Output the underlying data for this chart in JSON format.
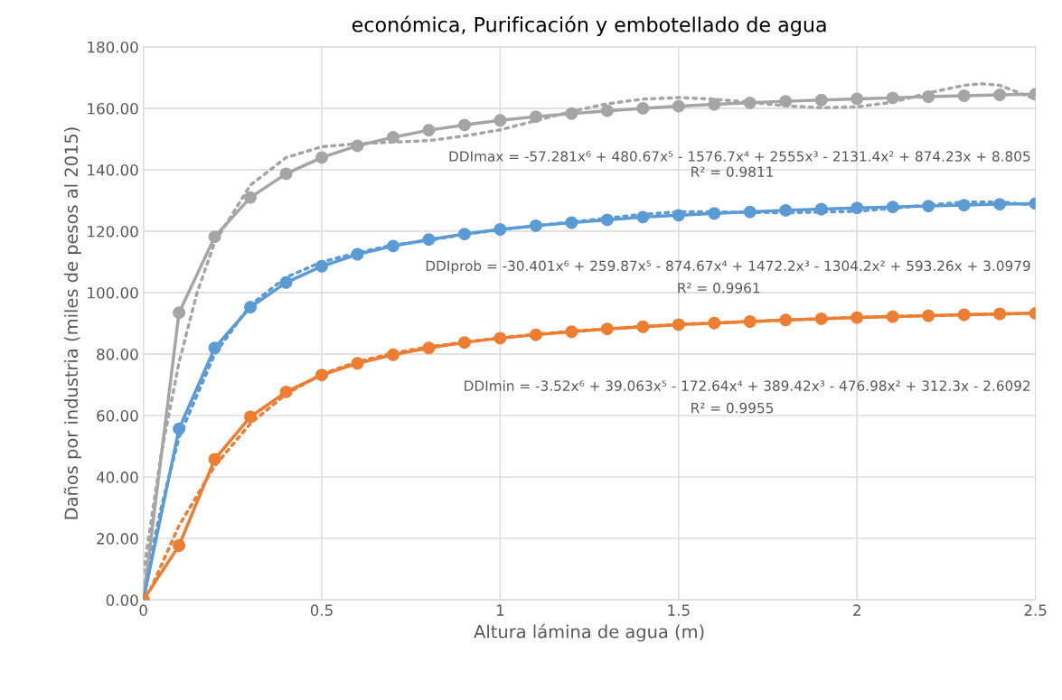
{
  "chart_data": {
    "type": "line",
    "title": "económica, Purificación y embotellado de agua",
    "xlabel": "Altura lámina de agua (m)",
    "ylabel": "Daños por industria (miles de pesos al 2015)",
    "x": [
      0,
      0.1,
      0.2,
      0.3,
      0.4,
      0.5,
      0.6,
      0.7,
      0.8,
      0.9,
      1.0,
      1.1,
      1.2,
      1.3,
      1.4,
      1.5,
      1.6,
      1.7,
      1.8,
      1.9,
      2.0,
      2.1,
      2.2,
      2.3,
      2.4,
      2.5
    ],
    "series": [
      {
        "color": "#a5a5a5",
        "marker": "circle",
        "line_style": "solid",
        "values": [
          0,
          93.5,
          118.2,
          131,
          138.7,
          144,
          147.8,
          150.6,
          152.9,
          154.6,
          156.1,
          157.3,
          158.3,
          159.2,
          160,
          160.7,
          161.3,
          161.8,
          162.3,
          162.7,
          163.1,
          163.4,
          163.8,
          164.1,
          164.4,
          164.6
        ]
      },
      {
        "color": "#5b9bd5",
        "marker": "circle",
        "line_style": "solid",
        "values": [
          0,
          55.7,
          82,
          95.3,
          103.3,
          108.6,
          112.5,
          115.2,
          117.3,
          119.1,
          120.6,
          121.8,
          122.8,
          123.7,
          124.6,
          125.2,
          125.8,
          126.3,
          126.8,
          127.2,
          127.6,
          127.9,
          128.2,
          128.5,
          128.8,
          129
        ]
      },
      {
        "color": "#ed7d31",
        "marker": "circle",
        "line_style": "solid",
        "values": [
          0,
          17.7,
          45.8,
          59.6,
          67.7,
          73.2,
          77,
          79.8,
          82,
          83.8,
          85.2,
          86.3,
          87.3,
          88.2,
          88.9,
          89.6,
          90.1,
          90.6,
          91.1,
          91.5,
          91.9,
          92.2,
          92.5,
          92.8,
          93.1,
          93.3
        ]
      },
      {
        "color": "#a5a5a5",
        "marker": "none",
        "line_style": "dotted",
        "x": [
          0,
          0.05,
          0.1,
          0.15,
          0.2,
          0.3,
          0.4,
          0.5,
          0.6,
          0.7,
          0.8,
          0.9,
          1.0,
          1.1,
          1.2,
          1.3,
          1.4,
          1.5,
          1.6,
          1.7,
          1.8,
          1.9,
          2.0,
          2.1,
          2.2,
          2.3,
          2.35,
          2.4,
          2.5
        ],
        "values": [
          8.8,
          47.5,
          77.3,
          99.8,
          116.4,
          135,
          144,
          147.5,
          148.5,
          149,
          149.5,
          151,
          153,
          156,
          159,
          161.5,
          163,
          163.5,
          163,
          162,
          160.8,
          160.2,
          160.5,
          162,
          165,
          167.5,
          168,
          167.5,
          163
        ]
      },
      {
        "color": "#5b9bd5",
        "marker": "none",
        "line_style": "dotted",
        "x": [
          0,
          0.05,
          0.1,
          0.2,
          0.3,
          0.4,
          0.5,
          0.6,
          0.7,
          0.8,
          0.9,
          1.0,
          1.2,
          1.4,
          1.5,
          1.6,
          1.8,
          2.0,
          2.2,
          2.3,
          2.4,
          2.5
        ],
        "values": [
          3.1,
          30,
          53,
          80,
          96,
          105,
          110,
          113,
          115.5,
          117,
          119,
          120.5,
          123,
          125.5,
          126.3,
          126.3,
          126,
          126.5,
          128.5,
          129.5,
          129.5,
          128.5
        ]
      },
      {
        "color": "#ed7d31",
        "marker": "none",
        "line_style": "dotted",
        "x": [
          0.02,
          0.1,
          0.2,
          0.3,
          0.4,
          0.5,
          0.6,
          0.7,
          0.8,
          1.0,
          1.2,
          1.5,
          2.0,
          2.5
        ],
        "values": [
          3.4,
          24.2,
          43.6,
          57.4,
          67,
          73.5,
          77.5,
          80.3,
          82.4,
          85.3,
          87.5,
          89.7,
          92,
          93.3
        ]
      }
    ],
    "annotations": [
      "DDImax = -57.281x⁶ + 480.67x⁵ - 1576.7x⁴ + 2555x³ - 2131.4x² + 874.23x + 8.805",
      "R² = 0.9811",
      "DDIprob = -30.401x⁶ + 259.87x⁵ - 874.67x⁴ + 1472.2x³ - 1304.2x² + 593.26x + 3.0979",
      "R² = 0.9961",
      "DDImin = -3.52x⁶ + 39.063x⁵ - 172.64x⁴ + 389.42x³ - 476.98x² + 312.3x - 2.6092",
      "R² = 0.9955"
    ],
    "xlim": [
      0,
      2.5
    ],
    "xticks": [
      0,
      0.5,
      1,
      1.5,
      2,
      2.5
    ],
    "ylim": [
      0,
      180
    ],
    "yticks": [
      {
        "value": 0,
        "label": "0.00"
      },
      {
        "value": 20,
        "label": "20.00"
      },
      {
        "value": 40,
        "label": "40.00"
      },
      {
        "value": 60,
        "label": "60.00"
      },
      {
        "value": 80,
        "label": "80.00"
      },
      {
        "value": 100,
        "label": "100.00"
      },
      {
        "value": 120,
        "label": "120.00"
      },
      {
        "value": 140,
        "label": "140.00"
      },
      {
        "value": 160,
        "label": "160.00"
      },
      {
        "value": 180,
        "label": "180.00"
      }
    ],
    "grid": true
  }
}
